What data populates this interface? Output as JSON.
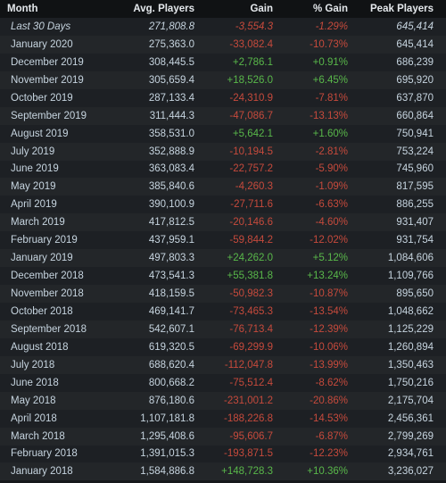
{
  "headers": {
    "month": "Month",
    "avg": "Avg. Players",
    "gain": "Gain",
    "pct": "% Gain",
    "peak": "Peak Players"
  },
  "rows": [
    {
      "month": "Last 30 Days",
      "avg": "271,808.8",
      "gain": "-3,554.3",
      "pct": "-1.29%",
      "peak": "645,414"
    },
    {
      "month": "January 2020",
      "avg": "275,363.0",
      "gain": "-33,082.4",
      "pct": "-10.73%",
      "peak": "645,414"
    },
    {
      "month": "December 2019",
      "avg": "308,445.5",
      "gain": "+2,786.1",
      "pct": "+0.91%",
      "peak": "686,239"
    },
    {
      "month": "November 2019",
      "avg": "305,659.4",
      "gain": "+18,526.0",
      "pct": "+6.45%",
      "peak": "695,920"
    },
    {
      "month": "October 2019",
      "avg": "287,133.4",
      "gain": "-24,310.9",
      "pct": "-7.81%",
      "peak": "637,870"
    },
    {
      "month": "September 2019",
      "avg": "311,444.3",
      "gain": "-47,086.7",
      "pct": "-13.13%",
      "peak": "660,864"
    },
    {
      "month": "August 2019",
      "avg": "358,531.0",
      "gain": "+5,642.1",
      "pct": "+1.60%",
      "peak": "750,941"
    },
    {
      "month": "July 2019",
      "avg": "352,888.9",
      "gain": "-10,194.5",
      "pct": "-2.81%",
      "peak": "753,224"
    },
    {
      "month": "June 2019",
      "avg": "363,083.4",
      "gain": "-22,757.2",
      "pct": "-5.90%",
      "peak": "745,960"
    },
    {
      "month": "May 2019",
      "avg": "385,840.6",
      "gain": "-4,260.3",
      "pct": "-1.09%",
      "peak": "817,595"
    },
    {
      "month": "April 2019",
      "avg": "390,100.9",
      "gain": "-27,711.6",
      "pct": "-6.63%",
      "peak": "886,255"
    },
    {
      "month": "March 2019",
      "avg": "417,812.5",
      "gain": "-20,146.6",
      "pct": "-4.60%",
      "peak": "931,407"
    },
    {
      "month": "February 2019",
      "avg": "437,959.1",
      "gain": "-59,844.2",
      "pct": "-12.02%",
      "peak": "931,754"
    },
    {
      "month": "January 2019",
      "avg": "497,803.3",
      "gain": "+24,262.0",
      "pct": "+5.12%",
      "peak": "1,084,606"
    },
    {
      "month": "December 2018",
      "avg": "473,541.3",
      "gain": "+55,381.8",
      "pct": "+13.24%",
      "peak": "1,109,766"
    },
    {
      "month": "November 2018",
      "avg": "418,159.5",
      "gain": "-50,982.3",
      "pct": "-10.87%",
      "peak": "895,650"
    },
    {
      "month": "October 2018",
      "avg": "469,141.7",
      "gain": "-73,465.3",
      "pct": "-13.54%",
      "peak": "1,048,662"
    },
    {
      "month": "September 2018",
      "avg": "542,607.1",
      "gain": "-76,713.4",
      "pct": "-12.39%",
      "peak": "1,125,229"
    },
    {
      "month": "August 2018",
      "avg": "619,320.5",
      "gain": "-69,299.9",
      "pct": "-10.06%",
      "peak": "1,260,894"
    },
    {
      "month": "July 2018",
      "avg": "688,620.4",
      "gain": "-112,047.8",
      "pct": "-13.99%",
      "peak": "1,350,463"
    },
    {
      "month": "June 2018",
      "avg": "800,668.2",
      "gain": "-75,512.4",
      "pct": "-8.62%",
      "peak": "1,750,216"
    },
    {
      "month": "May 2018",
      "avg": "876,180.6",
      "gain": "-231,001.2",
      "pct": "-20.86%",
      "peak": "2,175,704"
    },
    {
      "month": "April 2018",
      "avg": "1,107,181.8",
      "gain": "-188,226.8",
      "pct": "-14.53%",
      "peak": "2,456,361"
    },
    {
      "month": "March 2018",
      "avg": "1,295,408.6",
      "gain": "-95,606.7",
      "pct": "-6.87%",
      "peak": "2,799,269"
    },
    {
      "month": "February 2018",
      "avg": "1,391,015.3",
      "gain": "-193,871.5",
      "pct": "-12.23%",
      "peak": "2,934,761"
    },
    {
      "month": "January 2018",
      "avg": "1,584,886.8",
      "gain": "+148,728.3",
      "pct": "+10.36%",
      "peak": "3,236,027"
    }
  ],
  "colors": {
    "negative": "#c64a3c",
    "positive": "#59b84a"
  }
}
